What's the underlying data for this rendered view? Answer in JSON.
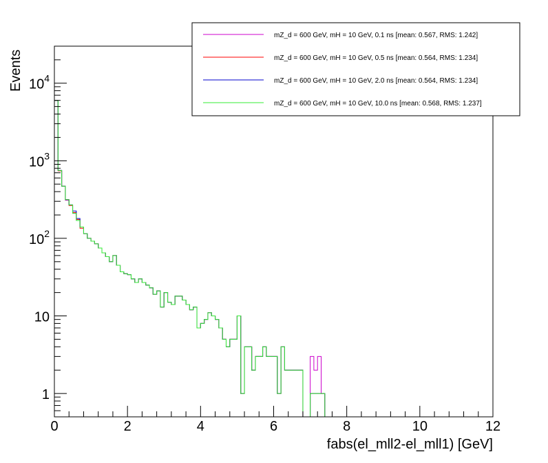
{
  "chart_data": {
    "type": "line",
    "style": "step-histogram",
    "xlabel": "fabs(el_mll2-el_mll1) [GeV]",
    "ylabel": "Events",
    "xlim": [
      0,
      12
    ],
    "ylim": [
      0.5,
      30000
    ],
    "yscale": "log",
    "bin_width": 0.1,
    "x_ticks": [
      "0",
      "2",
      "4",
      "6",
      "8",
      "10",
      "12"
    ],
    "x_tick_values": [
      0,
      2,
      4,
      6,
      8,
      10,
      12
    ],
    "y_tick_labels": [
      {
        "value": 1,
        "base": "1",
        "exp": ""
      },
      {
        "value": 10,
        "base": "10",
        "exp": ""
      },
      {
        "value": 100,
        "base": "10",
        "exp": "2"
      },
      {
        "value": 1000,
        "base": "10",
        "exp": "3"
      },
      {
        "value": 10000,
        "base": "10",
        "exp": "4"
      }
    ],
    "legend_position": "top-right",
    "series": [
      {
        "name": "mZ_d = 600 GeV, mH = 10 GeV, 0.1 ns [mean: 0.567, RMS: 1.242]",
        "color": "#cc00cc",
        "values": [
          6000,
          750,
          470,
          310,
          270,
          210,
          170,
          140,
          115,
          100,
          92,
          85,
          75,
          65,
          58,
          50,
          60,
          45,
          37,
          35,
          34,
          30,
          27,
          30,
          27,
          25,
          23,
          19,
          21,
          13,
          20,
          15,
          14,
          18,
          18,
          16,
          14,
          12,
          13,
          7,
          8,
          9,
          11,
          10,
          9,
          7,
          5,
          4,
          5,
          5,
          10,
          1,
          4,
          4,
          2,
          3,
          3,
          4,
          3,
          3,
          3,
          1,
          4,
          2,
          2,
          2,
          2,
          2,
          0.3,
          0.3,
          3,
          2,
          3,
          1,
          0,
          0,
          0,
          0,
          0,
          0,
          0,
          0,
          0,
          0,
          0,
          0,
          0,
          0,
          0,
          0,
          0,
          0,
          0,
          0,
          0,
          0,
          0,
          0,
          0,
          0,
          0,
          0,
          0,
          0,
          0,
          0,
          0,
          0,
          0,
          0,
          0,
          0,
          0,
          0,
          0,
          0
        ]
      },
      {
        "name": "mZ_d = 600 GeV, mH = 10 GeV, 0.5 ns [mean: 0.564, RMS: 1.234]",
        "color": "#ff0000",
        "values": [
          6000,
          740,
          470,
          315,
          265,
          215,
          175,
          135,
          115,
          100,
          92,
          85,
          75,
          65,
          58,
          50,
          60,
          45,
          37,
          35,
          34,
          30,
          27,
          30,
          27,
          25,
          23,
          19,
          21,
          13,
          20,
          15,
          14,
          18,
          18,
          16,
          14,
          12,
          13,
          7,
          8,
          9,
          11,
          10,
          9,
          7,
          5,
          4,
          5,
          5,
          10,
          1,
          4,
          4,
          2,
          3,
          3,
          4,
          3,
          3,
          3,
          1,
          4,
          2,
          2,
          2,
          2,
          2,
          0.3,
          0.3,
          1,
          1,
          1,
          1,
          0,
          0,
          0,
          0,
          0,
          0,
          0,
          0,
          0,
          0,
          0,
          0,
          0,
          0,
          0,
          0,
          0,
          0,
          0,
          0,
          0,
          0,
          0,
          0,
          0,
          0,
          0,
          0,
          0,
          0,
          0,
          0,
          0,
          0,
          0,
          0,
          0,
          0,
          0,
          0,
          0,
          0
        ]
      },
      {
        "name": "mZ_d = 600 GeV, mH = 10 GeV, 2.0 ns [mean: 0.564, RMS: 1.234]",
        "color": "#0000cc",
        "values": [
          6000,
          750,
          470,
          315,
          270,
          225,
          180,
          140,
          115,
          100,
          92,
          85,
          75,
          65,
          58,
          50,
          60,
          45,
          37,
          35,
          34,
          30,
          27,
          30,
          27,
          25,
          23,
          19,
          21,
          13,
          20,
          15,
          14,
          18,
          18,
          16,
          14,
          12,
          13,
          7,
          8,
          9,
          11,
          10,
          9,
          7,
          5,
          4,
          5,
          5,
          10,
          1,
          4,
          4,
          2,
          3,
          3,
          4,
          3,
          3,
          3,
          1,
          4,
          2,
          2,
          2,
          2,
          2,
          0.3,
          0.3,
          1,
          1,
          1,
          1,
          0,
          0,
          0,
          0,
          0,
          0,
          0,
          0,
          0,
          0,
          0,
          0,
          0,
          0,
          0,
          0,
          0,
          0,
          0,
          0,
          0,
          0,
          0,
          0,
          0,
          0,
          0,
          0,
          0,
          0,
          0,
          0,
          0,
          0,
          0,
          0,
          0,
          0,
          0,
          0,
          0,
          0
        ]
      },
      {
        "name": "mZ_d = 600 GeV, mH = 10 GeV, 10.0 ns [mean: 0.568, RMS: 1.237]",
        "color": "#33ee33",
        "values": [
          6000,
          750,
          470,
          315,
          270,
          210,
          170,
          140,
          115,
          100,
          92,
          85,
          75,
          65,
          58,
          50,
          60,
          45,
          37,
          35,
          34,
          30,
          27,
          30,
          27,
          25,
          23,
          19,
          21,
          13,
          20,
          15,
          14,
          18,
          18,
          16,
          14,
          12,
          13,
          7,
          8,
          9,
          11,
          10,
          9,
          7,
          5,
          4,
          5,
          5,
          10,
          1,
          4,
          4,
          2,
          3,
          3,
          4,
          3,
          3,
          3,
          1,
          4,
          2,
          2,
          2,
          2,
          2,
          0.3,
          0.3,
          1,
          1,
          1,
          1,
          0,
          0,
          0,
          0,
          0,
          0,
          0,
          0,
          0,
          0,
          0,
          0,
          0,
          0,
          0,
          0,
          0,
          0,
          0,
          0,
          0,
          0,
          0,
          0,
          0,
          0,
          0,
          0,
          0,
          0,
          0,
          0,
          0,
          0,
          0,
          0,
          0,
          0,
          0,
          0,
          0,
          0
        ]
      }
    ]
  }
}
